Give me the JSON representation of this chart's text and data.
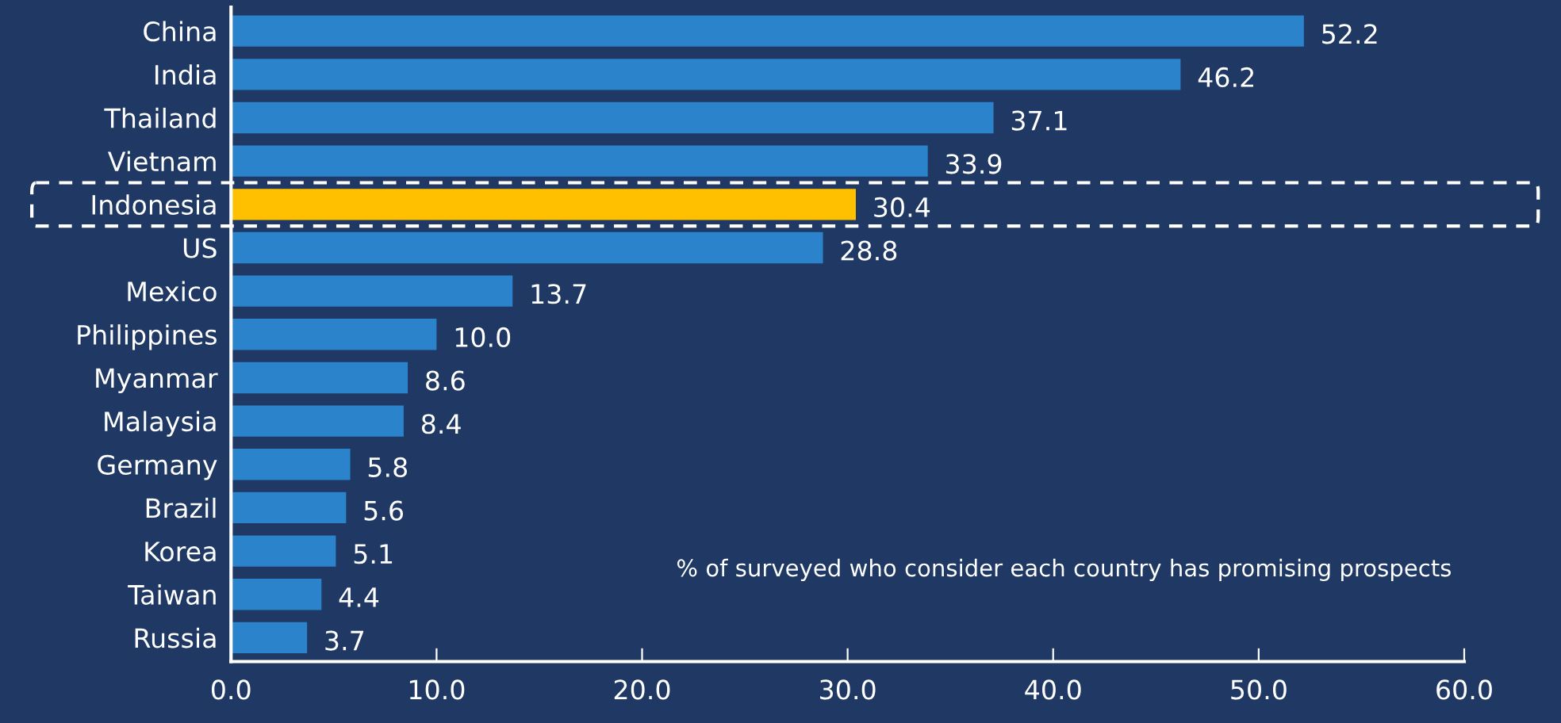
{
  "chart_data": {
    "type": "bar",
    "orientation": "horizontal",
    "categories": [
      "China",
      "India",
      "Thailand",
      "Vietnam",
      "Indonesia",
      "US",
      "Mexico",
      "Philippines",
      "Myanmar",
      "Malaysia",
      "Germany",
      "Brazil",
      "Korea",
      "Taiwan",
      "Russia"
    ],
    "values": [
      52.2,
      46.2,
      37.1,
      33.9,
      30.4,
      28.8,
      13.7,
      10.0,
      8.6,
      8.4,
      5.8,
      5.6,
      5.1,
      4.4,
      3.7
    ],
    "value_labels": [
      "52.2",
      "46.2",
      "37.1",
      "33.9",
      "30.4",
      "28.8",
      "13.7",
      "10.0",
      "8.6",
      "8.4",
      "5.8",
      "5.6",
      "5.1",
      "4.4",
      "3.7"
    ],
    "colors": [
      "#2a83cb",
      "#2a83cb",
      "#2a83cb",
      "#2a83cb",
      "#ffc000",
      "#2a83cb",
      "#2a83cb",
      "#2a83cb",
      "#2a83cb",
      "#2a83cb",
      "#2a83cb",
      "#2a83cb",
      "#2a83cb",
      "#2a83cb",
      "#2a83cb"
    ],
    "xlim": [
      0,
      60
    ],
    "xticks": [
      {
        "value": 0,
        "label": "0.0"
      },
      {
        "value": 10,
        "label": "10.0"
      },
      {
        "value": 20,
        "label": "20.0"
      },
      {
        "value": 30,
        "label": "30.0"
      },
      {
        "value": 40,
        "label": "40.0"
      },
      {
        "value": 50,
        "label": "50.0"
      },
      {
        "value": 60,
        "label": "60.0"
      }
    ],
    "annotations": [
      "% of surveyed who consider each country has promising prospects"
    ],
    "grid": false,
    "legend": false
  }
}
